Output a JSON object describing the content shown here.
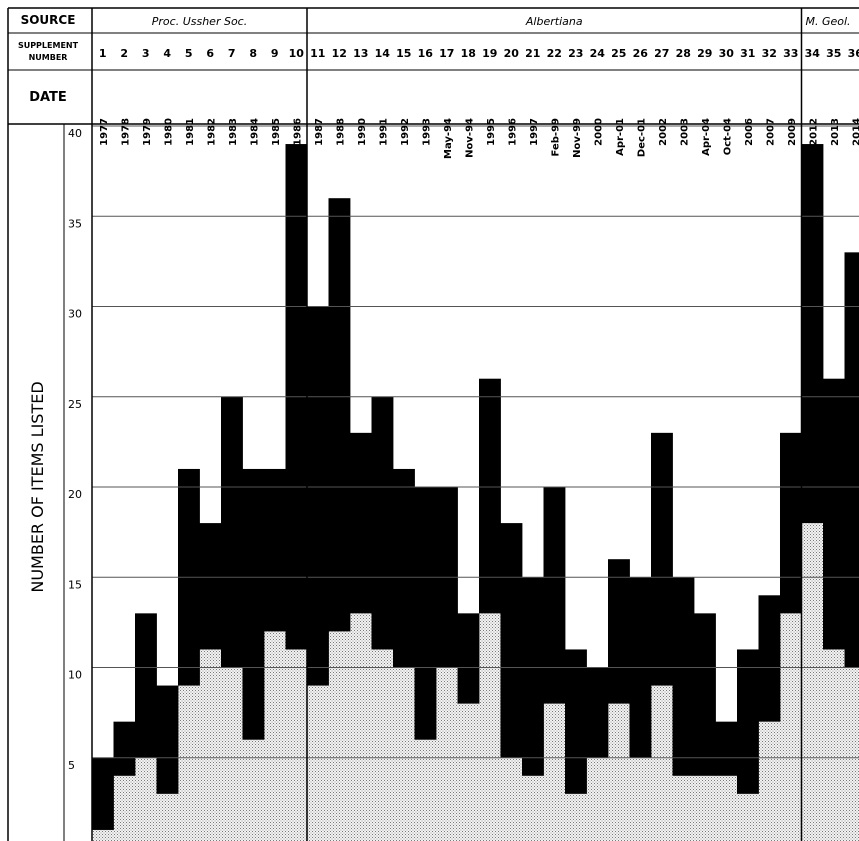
{
  "header": {
    "source_label": "SOURCE",
    "supplement_label_line1": "SUPPLEMENT",
    "supplement_label_line2": "NUMBER",
    "date_label": "DATE"
  },
  "colors": {
    "ink": "#000000",
    "stipple_bg": "#f2f2f2",
    "stipple_dot": "#7a7a7a",
    "background": "#ffffff"
  },
  "chart_data": {
    "type": "bar",
    "stacked": true,
    "ylabel": "NUMBER OF ITEMS LISTED",
    "ylim": [
      0,
      40
    ],
    "yticks": [
      5,
      10,
      15,
      20,
      25,
      30,
      35,
      40
    ],
    "grid": true,
    "sources": [
      {
        "name": "Proc. Ussher Soc.",
        "first_index": 0,
        "last_index": 9
      },
      {
        "name": "Albertiana",
        "first_index": 10,
        "last_index": 32
      },
      {
        "name": "M. Geol.",
        "first_index": 33,
        "last_index": 35
      }
    ],
    "categories": [
      "1",
      "2",
      "3",
      "4",
      "5",
      "6",
      "7",
      "8",
      "9",
      "10",
      "11",
      "12",
      "13",
      "14",
      "15",
      "16",
      "17",
      "18",
      "19",
      "20",
      "21",
      "22",
      "23",
      "24",
      "25",
      "26",
      "27",
      "28",
      "29",
      "30",
      "31",
      "32",
      "33",
      "34",
      "35",
      "36"
    ],
    "dates": [
      "1977",
      "1978",
      "1979",
      "1980",
      "1981",
      "1982",
      "1983",
      "1984",
      "1985",
      "1986",
      "1987",
      "1988",
      "1990",
      "1991",
      "1992",
      "1993",
      "May-94",
      "Nov-94",
      "1995",
      "1996",
      "1997",
      "Feb-99",
      "Nov-99",
      "2000",
      "Apr-01",
      "Dec-01",
      "2002",
      "2003",
      "Apr-04",
      "Oct-04",
      "2006",
      "2007",
      "2009",
      "2012",
      "2013",
      "2014"
    ],
    "series": [
      {
        "values": [
          1,
          4,
          5,
          3,
          9,
          11,
          10,
          6,
          12,
          11,
          9,
          12,
          13,
          11,
          10,
          6,
          10,
          8,
          13,
          5,
          4,
          8,
          3,
          5,
          8,
          5,
          9,
          4,
          4,
          4,
          3,
          7,
          13,
          18,
          11,
          10
        ]
      },
      {
        "values": [
          4,
          3,
          8,
          6,
          12,
          7,
          15,
          15,
          9,
          28,
          21,
          24,
          10,
          14,
          11,
          14,
          10,
          5,
          13,
          13,
          11,
          12,
          8,
          5,
          8,
          10,
          14,
          11,
          9,
          3,
          8,
          7,
          10,
          21,
          15,
          23
        ]
      }
    ],
    "totals": [
      5,
      7,
      13,
      9,
      21,
      18,
      25,
      21,
      21,
      39,
      30,
      36,
      23,
      25,
      21,
      20,
      20,
      13,
      26,
      18,
      15,
      20,
      11,
      10,
      16,
      15,
      23,
      15,
      13,
      7,
      11,
      14,
      23,
      39,
      26,
      33
    ]
  }
}
